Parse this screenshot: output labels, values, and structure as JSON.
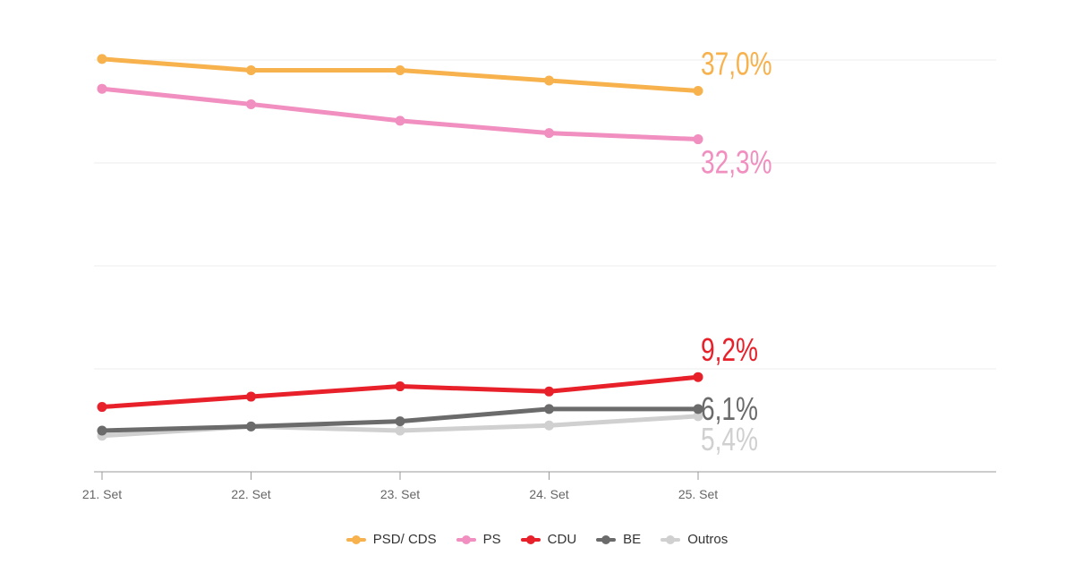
{
  "chart_data": {
    "type": "line",
    "title": "",
    "xlabel": "",
    "ylabel": "",
    "categories": [
      "21. Set",
      "22. Set",
      "23. Set",
      "24. Set",
      "25. Set"
    ],
    "ylim": [
      0,
      40
    ],
    "gridlines": [
      10,
      20,
      30,
      40
    ],
    "grid": true,
    "legend_position": "bottom-center",
    "series": [
      {
        "name": "PSD/ CDS",
        "color": "#f7b24d",
        "values": [
          40.1,
          39.0,
          39.0,
          38.0,
          37.0
        ],
        "end_label": "37,0%"
      },
      {
        "name": "PS",
        "color": "#f08fc0",
        "values": [
          37.2,
          35.7,
          34.1,
          32.9,
          32.3
        ],
        "end_label": "32,3%"
      },
      {
        "name": "CDU",
        "color": "#e8202a",
        "values": [
          6.3,
          7.3,
          8.3,
          7.8,
          9.2
        ],
        "end_label": "9,2%"
      },
      {
        "name": "BE",
        "color": "#6b6b6b",
        "values": [
          4.0,
          4.4,
          4.9,
          6.1,
          6.1
        ],
        "end_label": "6,1%"
      },
      {
        "name": "Outros",
        "color": "#d0d0d0",
        "values": [
          3.5,
          4.4,
          4.0,
          4.5,
          5.4
        ],
        "end_label": "5,4%"
      }
    ]
  }
}
